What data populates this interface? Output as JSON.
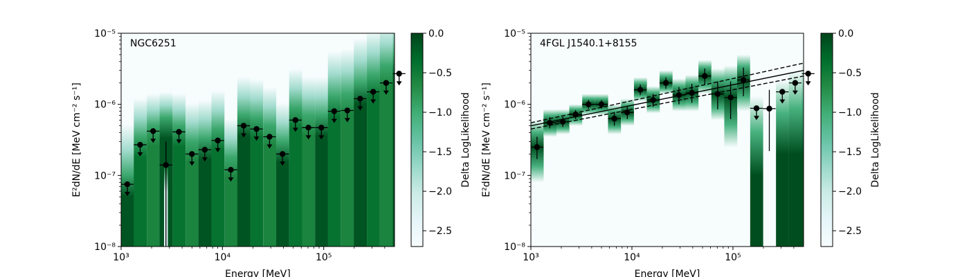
{
  "chart_data": [
    {
      "type": "scatter",
      "panel_label": "NGC6251",
      "xlabel": "Energy [MeV]",
      "ylabel": "E²dN/dE [MeV cm⁻² s⁻¹]",
      "xscale": "log",
      "yscale": "log",
      "xlim": [
        1000,
        500000
      ],
      "ylim": [
        1e-08,
        1e-05
      ],
      "x_ticks": [
        {
          "value": 1000,
          "label": "10³"
        },
        {
          "value": 10000,
          "label": "10⁴"
        },
        {
          "value": 100000,
          "label": "10⁵"
        }
      ],
      "y_ticks": [
        {
          "value": 1e-08,
          "label": "10⁻⁸"
        },
        {
          "value": 1e-07,
          "label": "10⁻⁷"
        },
        {
          "value": 1e-06,
          "label": "10⁻⁶"
        },
        {
          "value": 1e-05,
          "label": "10⁻⁵"
        }
      ],
      "colorbar": {
        "label": "Delta LogLikelihood",
        "range": [
          -2.7,
          0.0
        ],
        "ticks": [
          {
            "value": 0.0,
            "label": "0.0"
          },
          {
            "value": -0.5,
            "label": "−0.5"
          },
          {
            "value": -1.0,
            "label": "−1.0"
          },
          {
            "value": -1.5,
            "label": "−1.5"
          },
          {
            "value": -2.0,
            "label": "−2.0"
          },
          {
            "value": -2.5,
            "label": "−2.5"
          }
        ],
        "colormap": [
          "#f7fcfd",
          "#e5f5f9",
          "#ccece6",
          "#99d8c9",
          "#66c2a4",
          "#41ae76",
          "#238b45",
          "#006d2c",
          "#00441b"
        ]
      },
      "points": [
        {
          "e": 1150,
          "flux": 7.5e-08,
          "ul": true
        },
        {
          "e": 1540,
          "flux": 2.7e-07,
          "ul": true
        },
        {
          "e": 2070,
          "flux": 4.2e-07,
          "ul": true
        },
        {
          "e": 2770,
          "flux": 1.4e-07,
          "ul": false,
          "err": [
            1e-08,
            3e-07
          ]
        },
        {
          "e": 3720,
          "flux": 4.1e-07,
          "ul": true
        },
        {
          "e": 5000,
          "flux": 2e-07,
          "ul": true
        },
        {
          "e": 6700,
          "flux": 2.3e-07,
          "ul": true
        },
        {
          "e": 9000,
          "flux": 3.1e-07,
          "ul": true
        },
        {
          "e": 12100,
          "flux": 1.2e-07,
          "ul": true
        },
        {
          "e": 16200,
          "flux": 5e-07,
          "ul": true
        },
        {
          "e": 21700,
          "flux": 4.5e-07,
          "ul": true
        },
        {
          "e": 29200,
          "flux": 3.5e-07,
          "ul": true
        },
        {
          "e": 39200,
          "flux": 2e-07,
          "ul": true
        },
        {
          "e": 52600,
          "flux": 6e-07,
          "ul": true
        },
        {
          "e": 70600,
          "flux": 4.7e-07,
          "ul": true
        },
        {
          "e": 94800,
          "flux": 4.7e-07,
          "ul": true
        },
        {
          "e": 127000,
          "flux": 8e-07,
          "ul": true
        },
        {
          "e": 171000,
          "flux": 8.2e-07,
          "ul": true
        },
        {
          "e": 229000,
          "flux": 1.2e-06,
          "ul": true
        },
        {
          "e": 308000,
          "flux": 1.5e-06,
          "ul": true
        },
        {
          "e": 413000,
          "flux": 2e-06,
          "ul": true
        },
        {
          "e": 555000,
          "flux": 2.7e-06,
          "ul": true
        }
      ],
      "likelihood_columns": [
        {
          "e": 1150,
          "top": 1e-07,
          "fade": 0.4
        },
        {
          "e": 1540,
          "top": 3.5e-07,
          "fade": 0.3
        },
        {
          "e": 2070,
          "top": 5e-07,
          "fade": 0.25
        },
        {
          "e": 2770,
          "top": 6.5e-07,
          "fade": 0.2,
          "gap": [
            1e-08,
            1.3e-07
          ]
        },
        {
          "e": 3720,
          "top": 5e-07,
          "fade": 0.25
        },
        {
          "e": 5000,
          "top": 3e-07,
          "fade": 0.3
        },
        {
          "e": 6700,
          "top": 3.3e-07,
          "fade": 0.3
        },
        {
          "e": 9000,
          "top": 4.5e-07,
          "fade": 0.3
        },
        {
          "e": 12100,
          "top": 1.8e-07,
          "fade": 0.3
        },
        {
          "e": 16200,
          "top": 7e-07,
          "fade": 0.3
        },
        {
          "e": 21700,
          "top": 6.5e-07,
          "fade": 0.3
        },
        {
          "e": 29200,
          "top": 5e-07,
          "fade": 0.3
        },
        {
          "e": 39200,
          "top": 3e-07,
          "fade": 0.3
        },
        {
          "e": 52600,
          "top": 9e-07,
          "fade": 0.3
        },
        {
          "e": 70600,
          "top": 7e-07,
          "fade": 0.3
        },
        {
          "e": 94800,
          "top": 7e-07,
          "fade": 0.3
        },
        {
          "e": 127000,
          "top": 1.3e-06,
          "fade": 0.35
        },
        {
          "e": 171000,
          "top": 1.4e-06,
          "fade": 0.35
        },
        {
          "e": 229000,
          "top": 2e-06,
          "fade": 0.35
        },
        {
          "e": 308000,
          "top": 2.6e-06,
          "fade": 0.35
        },
        {
          "e": 413000,
          "top": 3.5e-06,
          "fade": 0.35
        },
        {
          "e": 555000,
          "top": 5e-06,
          "fade": 0.35
        }
      ]
    },
    {
      "type": "scatter",
      "panel_label": "4FGL J1540.1+8155",
      "xlabel": "Energy [MeV]",
      "ylabel": "E²dN/dE [MeV cm⁻² s⁻¹]",
      "xscale": "log",
      "yscale": "log",
      "xlim": [
        1000,
        500000
      ],
      "ylim": [
        1e-08,
        1e-05
      ],
      "x_ticks": [
        {
          "value": 1000,
          "label": "10³"
        },
        {
          "value": 10000,
          "label": "10⁴"
        },
        {
          "value": 100000,
          "label": "10⁵"
        }
      ],
      "y_ticks": [
        {
          "value": 1e-08,
          "label": "10⁻⁸"
        },
        {
          "value": 1e-07,
          "label": "10⁻⁷"
        },
        {
          "value": 1e-06,
          "label": "10⁻⁶"
        },
        {
          "value": 1e-05,
          "label": "10⁻⁵"
        }
      ],
      "colorbar": {
        "label": "Delta LogLikelihood",
        "range": [
          -2.7,
          0.0
        ],
        "ticks": [
          {
            "value": 0.0,
            "label": "0.0"
          },
          {
            "value": -0.5,
            "label": "−0.5"
          },
          {
            "value": -1.0,
            "label": "−1.0"
          },
          {
            "value": -1.5,
            "label": "−1.5"
          },
          {
            "value": -2.0,
            "label": "−2.0"
          },
          {
            "value": -2.5,
            "label": "−2.5"
          }
        ],
        "colormap": [
          "#f7fcfd",
          "#e5f5f9",
          "#ccece6",
          "#99d8c9",
          "#66c2a4",
          "#41ae76",
          "#238b45",
          "#006d2c",
          "#00441b"
        ]
      },
      "model_lines": [
        {
          "style": "solid",
          "points": [
            [
              1000,
              5e-07
            ],
            [
              500000,
              3e-06
            ]
          ]
        },
        {
          "style": "dashed",
          "points": [
            [
              1000,
              5.5e-07
            ],
            [
              500000,
              3.8e-06
            ]
          ]
        },
        {
          "style": "dashed",
          "points": [
            [
              1000,
              4.5e-07
            ],
            [
              500000,
              2.5e-06
            ]
          ]
        }
      ],
      "points": [
        {
          "e": 1150,
          "flux": 2.5e-07,
          "ul": false,
          "err": [
            1.7e-07,
            3.5e-07
          ]
        },
        {
          "e": 1540,
          "flux": 5.5e-07,
          "ul": false,
          "err": [
            4.6e-07,
            6.6e-07
          ]
        },
        {
          "e": 2070,
          "flux": 5.7e-07,
          "ul": false,
          "err": [
            4.8e-07,
            6.7e-07
          ]
        },
        {
          "e": 2770,
          "flux": 7.2e-07,
          "ul": false,
          "err": [
            6.2e-07,
            8.3e-07
          ]
        },
        {
          "e": 3720,
          "flux": 1e-06,
          "ul": false,
          "err": [
            8.7e-07,
            1.15e-06
          ]
        },
        {
          "e": 5000,
          "flux": 1e-06,
          "ul": false,
          "err": [
            8.7e-07,
            1.15e-06
          ]
        },
        {
          "e": 6700,
          "flux": 6.3e-07,
          "ul": false,
          "err": [
            5e-07,
            7.8e-07
          ]
        },
        {
          "e": 9000,
          "flux": 7.7e-07,
          "ul": false,
          "err": [
            6.2e-07,
            9.5e-07
          ]
        },
        {
          "e": 12100,
          "flux": 1.6e-06,
          "ul": false,
          "err": [
            1.35e-06,
            1.9e-06
          ]
        },
        {
          "e": 16200,
          "flux": 1.15e-06,
          "ul": false,
          "err": [
            9.2e-07,
            1.4e-06
          ]
        },
        {
          "e": 21700,
          "flux": 2e-06,
          "ul": false,
          "err": [
            1.65e-06,
            2.4e-06
          ]
        },
        {
          "e": 29200,
          "flux": 1.35e-06,
          "ul": false,
          "err": [
            1e-06,
            1.75e-06
          ]
        },
        {
          "e": 39200,
          "flux": 1.45e-06,
          "ul": false,
          "err": [
            1.05e-06,
            1.95e-06
          ]
        },
        {
          "e": 52600,
          "flux": 2.5e-06,
          "ul": false,
          "err": [
            1.9e-06,
            3.2e-06
          ]
        },
        {
          "e": 70600,
          "flux": 1.4e-06,
          "ul": false,
          "err": [
            8.5e-07,
            2.1e-06
          ]
        },
        {
          "e": 94800,
          "flux": 1.25e-06,
          "ul": false,
          "err": [
            6.2e-07,
            2.1e-06
          ]
        },
        {
          "e": 127000,
          "flux": 2.2e-06,
          "ul": false,
          "err": [
            1.3e-06,
            3.3e-06
          ]
        },
        {
          "e": 171000,
          "flux": 8.8e-07,
          "ul": true
        },
        {
          "e": 229000,
          "flux": 8.7e-07,
          "ul": false,
          "err": [
            2.2e-07,
            1.6e-06
          ]
        },
        {
          "e": 308000,
          "flux": 1.5e-06,
          "ul": true
        },
        {
          "e": 413000,
          "flux": 2e-06,
          "ul": true
        },
        {
          "e": 555000,
          "flux": 2.7e-06,
          "ul": true
        }
      ],
      "likelihood_columns": [
        {
          "e": 1150,
          "band": [
            8e-08,
            6e-07
          ],
          "peak": 2.5e-07
        },
        {
          "e": 1540,
          "band": [
            3.5e-07,
            8.5e-07
          ],
          "peak": 5.5e-07
        },
        {
          "e": 2070,
          "band": [
            3.8e-07,
            8.5e-07
          ],
          "peak": 5.7e-07
        },
        {
          "e": 2770,
          "band": [
            5e-07,
            1e-06
          ],
          "peak": 7.2e-07
        },
        {
          "e": 3720,
          "band": [
            7e-07,
            1.4e-06
          ],
          "peak": 1e-06
        },
        {
          "e": 5000,
          "band": [
            7e-07,
            1.4e-06
          ],
          "peak": 1e-06
        },
        {
          "e": 6700,
          "band": [
            3.8e-07,
            1e-06
          ],
          "peak": 6.3e-07
        },
        {
          "e": 9000,
          "band": [
            5e-07,
            1.2e-06
          ],
          "peak": 7.7e-07
        },
        {
          "e": 12100,
          "band": [
            1.1e-06,
            2.4e-06
          ],
          "peak": 1.6e-06
        },
        {
          "e": 16200,
          "band": [
            7.5e-07,
            1.8e-06
          ],
          "peak": 1.15e-06
        },
        {
          "e": 21700,
          "band": [
            1.4e-06,
            3e-06
          ],
          "peak": 2e-06
        },
        {
          "e": 29200,
          "band": [
            8e-07,
            2.3e-06
          ],
          "peak": 1.35e-06
        },
        {
          "e": 39200,
          "band": [
            8e-07,
            2.6e-06
          ],
          "peak": 1.45e-06
        },
        {
          "e": 52600,
          "band": [
            1.4e-06,
            4.2e-06
          ],
          "peak": 2.5e-06
        },
        {
          "e": 70600,
          "band": [
            6e-07,
            3.2e-06
          ],
          "peak": 1.4e-06
        },
        {
          "e": 94800,
          "band": [
            2.5e-07,
            3.5e-06
          ],
          "peak": 1.25e-06
        },
        {
          "e": 127000,
          "band": [
            8e-07,
            5e-06
          ],
          "peak": 2.2e-06
        },
        {
          "e": 171000,
          "band": [
            1e-08,
            1.3e-06
          ],
          "peak": 1e-07
        },
        {
          "e": 229000,
          "band": null
        },
        {
          "e": 308000,
          "band": [
            1e-08,
            2.2e-06
          ],
          "peak": 2e-07
        },
        {
          "e": 413000,
          "band": [
            1e-08,
            3e-06
          ],
          "peak": 2e-07
        },
        {
          "e": 555000,
          "band": [
            1e-08,
            4e-06
          ],
          "peak": 2e-07
        }
      ]
    }
  ]
}
